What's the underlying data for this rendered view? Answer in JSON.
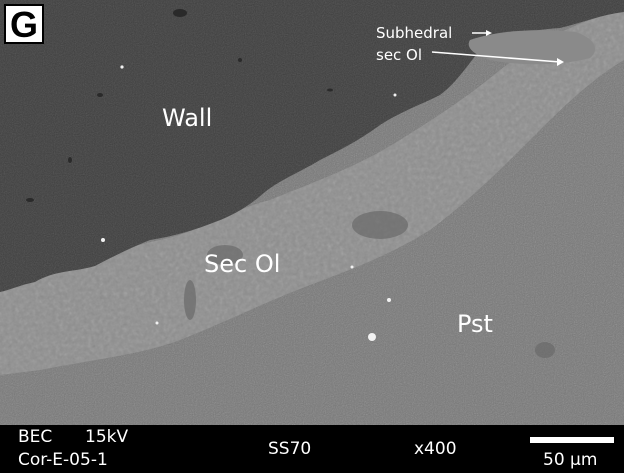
{
  "panel": {
    "letter": "G"
  },
  "annotations": {
    "wall": "Wall",
    "sec_ol": "Sec Ol",
    "pst": "Pst",
    "subhedral_line1": "Subhedral",
    "subhedral_line2": "sec Ol"
  },
  "info_bar": {
    "detector": "BEC",
    "voltage": "15kV",
    "sample": "Cor-E-05-1",
    "specimen": "SS70",
    "magnification": "x400",
    "scale_bar": "50 µm"
  },
  "colors": {
    "wall": "#3f3f3f",
    "sec_ol": "#8c8c8c",
    "pst": "#7a7a7a",
    "bar": "#000000"
  }
}
